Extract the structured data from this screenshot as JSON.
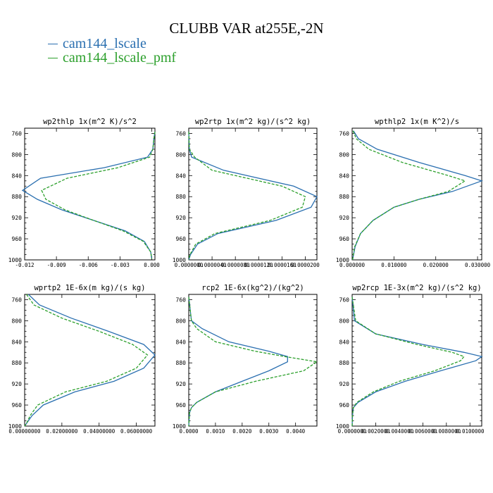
{
  "title": "CLUBB VAR at255E,-2N",
  "legend": [
    {
      "name": "cam144_lscale",
      "color": "#2a6fb0"
    },
    {
      "name": "cam144_lscale_pmf",
      "color": "#2ca02c"
    }
  ],
  "chart_data": [
    {
      "type": "line",
      "title": "wp2thlp  1x(m^2 K)/s^2",
      "xlim": [
        -0.012,
        0.0003
      ],
      "ylim": [
        1000,
        750
      ],
      "y_ticks": [
        760,
        800,
        840,
        880,
        920,
        960,
        1000
      ],
      "x_ticks": [
        -0.012,
        -0.009,
        -0.006,
        -0.003,
        0.0
      ],
      "x_tick_labels": [
        "-0.012",
        "-0.009",
        "-0.006",
        "-0.003",
        "0.000"
      ],
      "y": [
        757,
        770,
        790,
        805,
        825,
        845,
        868,
        885,
        905,
        925,
        945,
        965,
        985,
        998
      ],
      "series": [
        {
          "name": "cam144_lscale",
          "color": "#2a6fb0",
          "dashed": false,
          "values": [
            0.0003,
            0.0002,
            0.0001,
            -0.0004,
            -0.0045,
            -0.0105,
            -0.0122,
            -0.0108,
            -0.0085,
            -0.0055,
            -0.0025,
            -0.0007,
            -0.0001,
            0.0
          ]
        },
        {
          "name": "cam144_lscale_pmf",
          "color": "#2ca02c",
          "dashed": false,
          "dashed_style": true,
          "values": [
            0.0003,
            0.0002,
            0.0001,
            -0.0002,
            -0.0032,
            -0.008,
            -0.0104,
            -0.01,
            -0.0082,
            -0.0055,
            -0.0027,
            -0.0008,
            -0.0001,
            0.0
          ]
        }
      ]
    },
    {
      "type": "line",
      "title": "wp2rtp  1x(m^2 kg)/(s^2 kg)",
      "xlim": [
        0,
        2.2e-05
      ],
      "ylim": [
        1000,
        750
      ],
      "y_ticks": [
        760,
        800,
        840,
        880,
        920,
        960,
        1000
      ],
      "x_ticks": [
        0,
        4e-06,
        8e-06,
        1.2e-05,
        1.6e-05,
        2e-05
      ],
      "x_tick_labels": [
        "0.0000000",
        "0.0000040",
        "0.0000080",
        "0.0000120",
        "0.0000160",
        "0.0000200"
      ],
      "y": [
        757,
        790,
        805,
        830,
        860,
        880,
        900,
        925,
        950,
        970,
        990,
        1000
      ],
      "series": [
        {
          "name": "cam144_lscale",
          "color": "#2a6fb0",
          "dashed": false,
          "values": [
            0.0,
            1e-07,
            5e-07,
            6e-06,
            1.8e-05,
            2.2e-05,
            2.1e-05,
            1.5e-05,
            5e-06,
            1.5e-06,
            3e-07,
            0.0
          ]
        },
        {
          "name": "cam144_lscale_pmf",
          "color": "#2ca02c",
          "dashed": true,
          "values": [
            0.0,
            1e-07,
            1e-06,
            4e-06,
            1.6e-05,
            2e-05,
            1.95e-05,
            1.4e-05,
            4.5e-06,
            1.2e-06,
            2e-07,
            0.0
          ]
        }
      ]
    },
    {
      "type": "line",
      "title": "wpthlp2  1x(m K^2)/s",
      "xlim": [
        0,
        0.031
      ],
      "ylim": [
        1000,
        750
      ],
      "y_ticks": [
        760,
        800,
        840,
        880,
        920,
        960,
        1000
      ],
      "x_ticks": [
        0,
        0.01,
        0.02,
        0.03
      ],
      "x_tick_labels": [
        "0.000000",
        "0.010000",
        "0.020000",
        "0.030000"
      ],
      "y": [
        755,
        770,
        790,
        815,
        840,
        850,
        870,
        885,
        900,
        925,
        950,
        975,
        1000
      ],
      "series": [
        {
          "name": "cam144_lscale",
          "color": "#2a6fb0",
          "dashed": false,
          "values": [
            0.0003,
            0.0015,
            0.006,
            0.016,
            0.027,
            0.031,
            0.024,
            0.016,
            0.01,
            0.005,
            0.002,
            0.0007,
            0.0001
          ]
        },
        {
          "name": "cam144_lscale_pmf",
          "color": "#2ca02c",
          "dashed": true,
          "values": [
            0.0002,
            0.001,
            0.004,
            0.012,
            0.023,
            0.027,
            0.023,
            0.016,
            0.01,
            0.005,
            0.002,
            0.0006,
            0.0001
          ]
        }
      ]
    },
    {
      "type": "line",
      "title": "wprtp2  1E-6x(m kg)/(s kg)",
      "xlim": [
        0,
        0.07
      ],
      "ylim": [
        1000,
        750
      ],
      "y_ticks": [
        760,
        800,
        840,
        880,
        920,
        960,
        1000
      ],
      "x_ticks": [
        0,
        0.02,
        0.04,
        0.06
      ],
      "x_tick_labels": [
        "0.00000000",
        "0.02000000",
        "0.04000000",
        "0.06000000"
      ],
      "y": [
        750,
        770,
        795,
        820,
        845,
        865,
        890,
        915,
        935,
        960,
        980,
        995,
        1000
      ],
      "series": [
        {
          "name": "cam144_lscale",
          "color": "#2a6fb0",
          "dashed": false,
          "values": [
            0.002,
            0.008,
            0.025,
            0.045,
            0.064,
            0.07,
            0.064,
            0.048,
            0.027,
            0.01,
            0.004,
            0.001,
            0.0
          ]
        },
        {
          "name": "cam144_lscale_pmf",
          "color": "#2ca02c",
          "dashed": true,
          "values": [
            0.001,
            0.005,
            0.02,
            0.04,
            0.058,
            0.066,
            0.06,
            0.044,
            0.022,
            0.007,
            0.003,
            0.001,
            0.0
          ]
        }
      ]
    },
    {
      "type": "line",
      "title": "rcp2  1E-6x(kg^2)/(kg^2)",
      "xlim": [
        0,
        0.0048
      ],
      "ylim": [
        1000,
        750
      ],
      "y_ticks": [
        760,
        800,
        840,
        880,
        920,
        960,
        1000
      ],
      "x_ticks": [
        0,
        0.001,
        0.002,
        0.003,
        0.004
      ],
      "x_tick_labels": [
        "0.0000",
        "0.0010",
        "0.0020",
        "0.0030",
        "0.0040"
      ],
      "y": [
        755,
        800,
        815,
        840,
        858,
        868,
        878,
        895,
        915,
        935,
        955,
        965,
        975,
        1000
      ],
      "series": [
        {
          "name": "cam144_lscale",
          "color": "#2a6fb0",
          "dashed": false,
          "values": [
            0.0,
            0.0001,
            0.0005,
            0.0015,
            0.003,
            0.0037,
            0.0037,
            0.003,
            0.002,
            0.001,
            0.0003,
            0.0001,
            3e-05,
            0.0
          ]
        },
        {
          "name": "cam144_lscale_pmf",
          "color": "#2ca02c",
          "dashed": true,
          "values": [
            0.0,
            0.0001,
            0.0003,
            0.001,
            0.0025,
            0.0036,
            0.0048,
            0.0043,
            0.0025,
            0.001,
            0.0003,
            0.0001,
            3e-05,
            0.0
          ]
        }
      ]
    },
    {
      "type": "line",
      "title": "wp2rcp  1E-3x(m^2 kg)/(s^2 kg)",
      "xlim": [
        0,
        0.011
      ],
      "ylim": [
        1000,
        750
      ],
      "y_ticks": [
        760,
        800,
        840,
        880,
        920,
        960,
        1000
      ],
      "x_ticks": [
        0,
        0.002,
        0.004,
        0.006,
        0.008,
        0.01
      ],
      "x_tick_labels": [
        "0.0000000",
        "0.0020000",
        "0.0040000",
        "0.0060000",
        "0.0080000",
        "0.0100000"
      ],
      "y": [
        755,
        800,
        825,
        845,
        860,
        868,
        876,
        895,
        915,
        935,
        955,
        965,
        980,
        1000
      ],
      "series": [
        {
          "name": "cam144_lscale",
          "color": "#2a6fb0",
          "dashed": false,
          "values": [
            0.0,
            0.0002,
            0.002,
            0.006,
            0.0095,
            0.011,
            0.0105,
            0.0075,
            0.0045,
            0.002,
            0.0005,
            0.0001,
            3e-05,
            0.0
          ]
        },
        {
          "name": "cam144_lscale_pmf",
          "color": "#2ca02c",
          "dashed": true,
          "values": [
            0.0,
            0.0003,
            0.002,
            0.0055,
            0.0085,
            0.0095,
            0.0092,
            0.007,
            0.004,
            0.0018,
            0.0004,
            0.0001,
            3e-05,
            0.0
          ]
        }
      ]
    }
  ]
}
